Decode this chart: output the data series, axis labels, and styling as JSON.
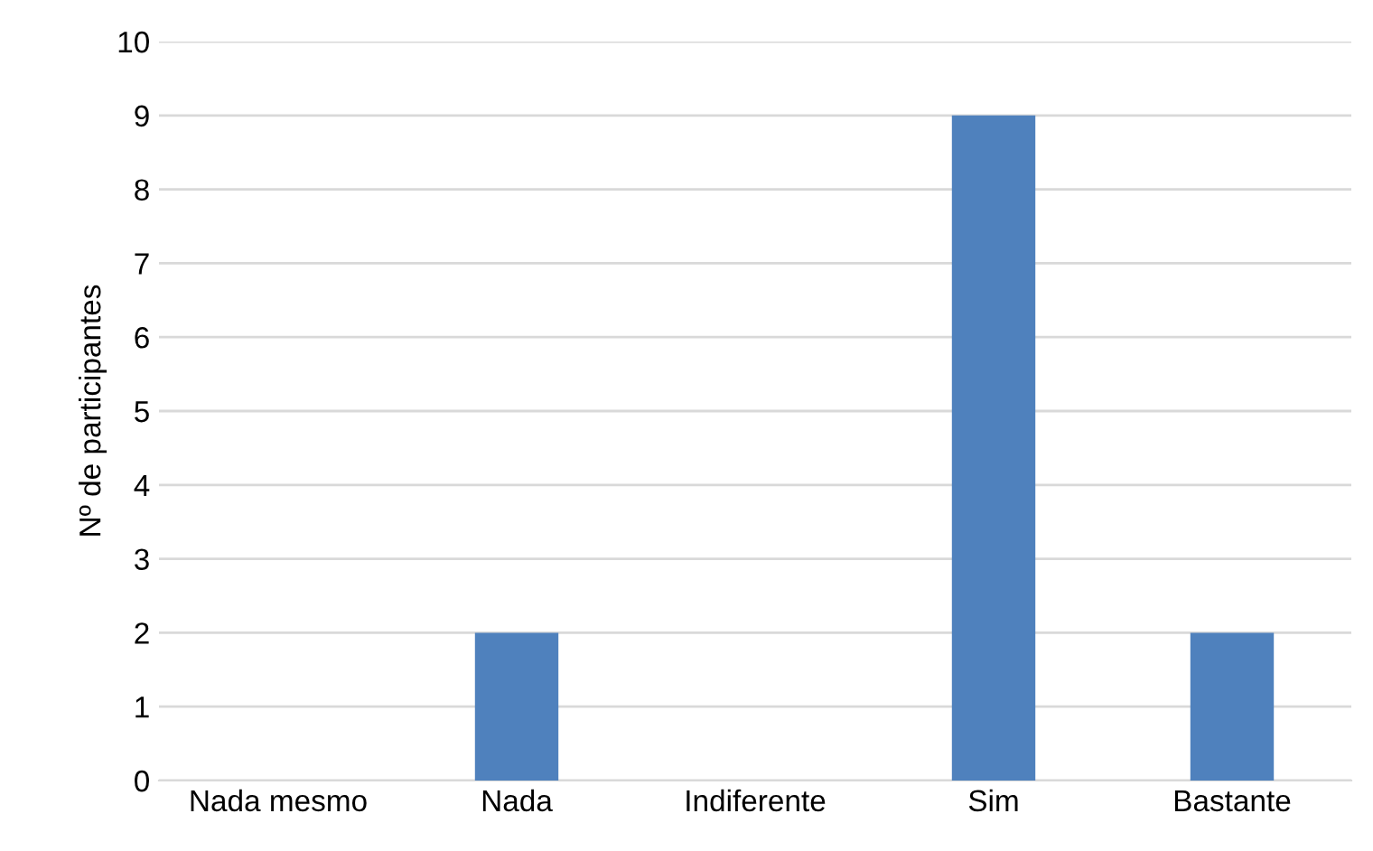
{
  "chart_data": {
    "type": "bar",
    "ylabel": "Nº de participantes",
    "categories": [
      "Nada mesmo",
      "Nada",
      "Indiferente",
      "Sim",
      "Bastante"
    ],
    "values": [
      0,
      2,
      0,
      9,
      2
    ],
    "color": "#4f81bd",
    "ylim": [
      0,
      10
    ],
    "yticks": [
      0,
      1,
      2,
      3,
      4,
      5,
      6,
      7,
      8,
      9,
      10
    ],
    "grid": "y"
  }
}
